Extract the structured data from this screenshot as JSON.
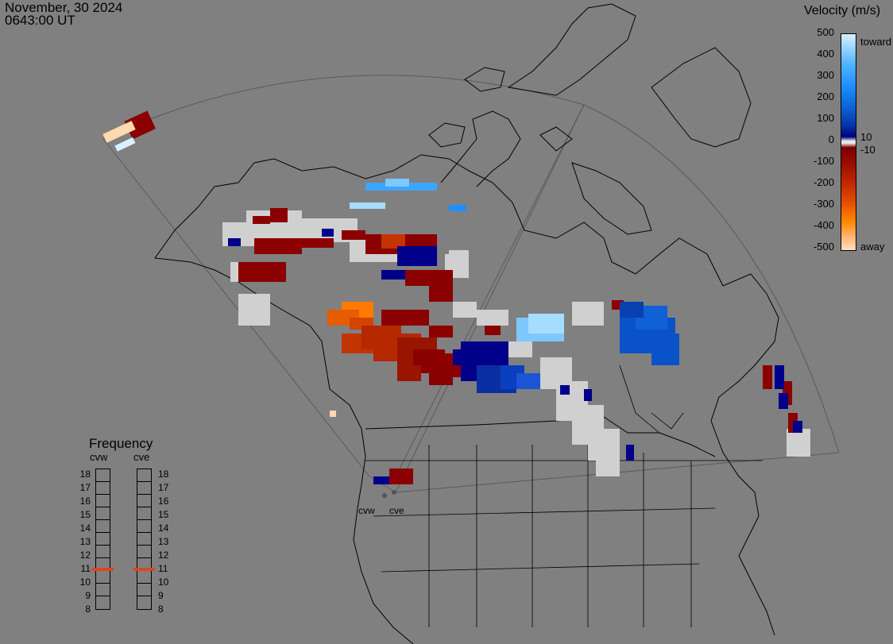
{
  "header": {
    "date": "November, 30 2024",
    "time": "0643:00 UT"
  },
  "legend": {
    "title": "Velocity (m/s)",
    "ticks": [
      "500",
      "400",
      "300",
      "200",
      "100",
      "0",
      "-100",
      "-200",
      "-300",
      "-400",
      "-500"
    ],
    "right_labels": {
      "toward": "toward",
      "plus10": "10",
      "minus10": "-10",
      "away": "away"
    },
    "colors": {
      "toward": "#1e8fff",
      "neutral": "#d3d3d3",
      "away": "#c42b00"
    }
  },
  "radars": {
    "west": "cvw",
    "east": "cve"
  },
  "frequency": {
    "title": "Frequency",
    "columns": [
      "cvw",
      "cve"
    ],
    "levels": [
      "18",
      "17",
      "16",
      "15",
      "14",
      "13",
      "12",
      "11",
      "10",
      "9",
      "8"
    ],
    "cvw_value": 11,
    "cve_value": 11
  }
}
